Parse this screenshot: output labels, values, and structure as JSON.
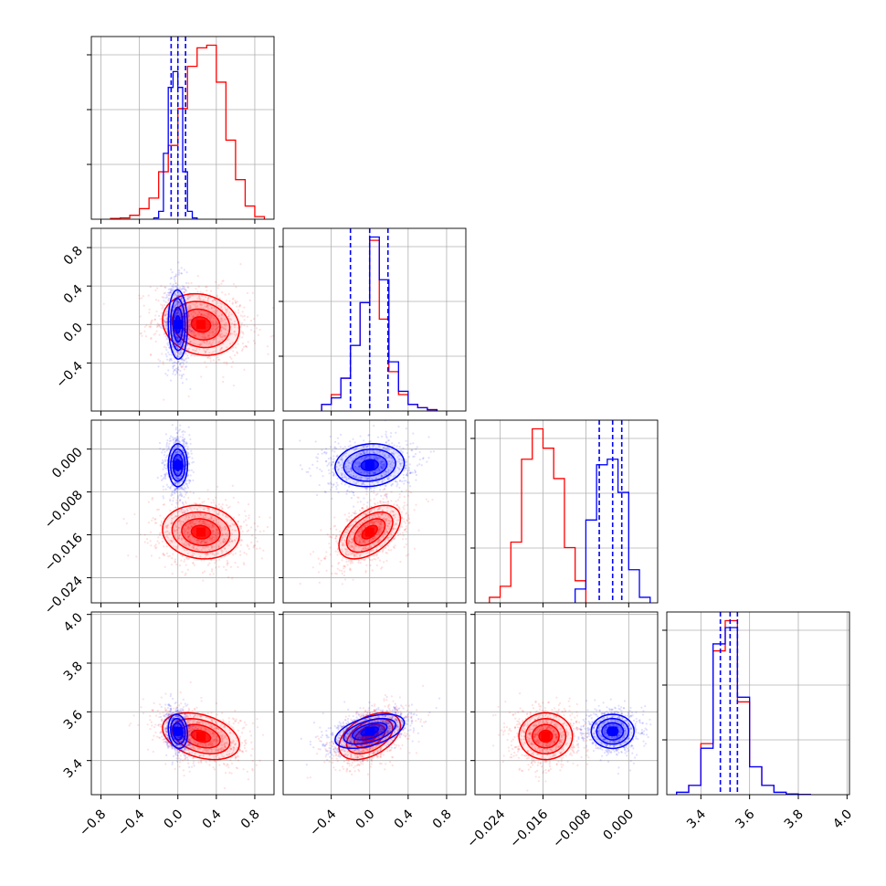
{
  "chart_data": {
    "type": "corner",
    "grid": true,
    "series": [
      {
        "color": "#ff0000",
        "means": {
          "p0": 0.24,
          "p1": 0.0,
          "p2": -0.0155,
          "p3": 3.5
        },
        "sds": {
          "p0": 0.2,
          "p1": 0.16,
          "p2": 0.0025,
          "p3": 0.048
        },
        "corr": {
          "p1_p0": -0.15,
          "p2_p0": -0.1,
          "p2_p1": 0.5,
          "p3_p0": -0.35,
          "p3_p1": 0.45,
          "p3_p2": 0.0
        },
        "hist": {
          "p0": {
            "edges": [
              -0.7,
              -0.6,
              -0.5,
              -0.4,
              -0.3,
              -0.2,
              -0.1,
              0.0,
              0.1,
              0.2,
              0.3,
              0.4,
              0.5,
              0.6,
              0.7,
              0.8,
              0.9
            ],
            "counts": [
              0.3,
              0.5,
              1.5,
              4,
              8,
              18,
              28,
              42,
              58,
              65,
              66,
              52,
              30,
              15,
              5,
              1
            ]
          },
          "p1": {
            "edges": [
              -0.5,
              -0.4,
              -0.3,
              -0.2,
              -0.1,
              0.0,
              0.1,
              0.2,
              0.3,
              0.4,
              0.5,
              0.6,
              0.7
            ],
            "counts": [
              2,
              5,
              10,
              20,
              33,
              52,
              28,
              12,
              5,
              2,
              1,
              0.4
            ]
          },
          "p2": {
            "edges": [
              -0.026,
              -0.024,
              -0.022,
              -0.02,
              -0.018,
              -0.016,
              -0.014,
              -0.012,
              -0.01,
              -0.008
            ],
            "counts": [
              2,
              6,
              22,
              52,
              63,
              56,
              45,
              20,
              8
            ]
          },
          "p3": {
            "edges": [
              3.3,
              3.35,
              3.4,
              3.45,
              3.5,
              3.55,
              3.6,
              3.65,
              3.7,
              3.75,
              3.8,
              3.85
            ],
            "counts": [
              1,
              4,
              22,
              62,
              75,
              40,
              12,
              4,
              1,
              0.3,
              0.1
            ]
          }
        }
      },
      {
        "color": "#0000ff",
        "means": {
          "p0": 0.0,
          "p1": 0.0,
          "p2": -0.003,
          "p3": 3.52
        },
        "sds": {
          "p0": 0.05,
          "p1": 0.18,
          "p2": 0.002,
          "p3": 0.035
        },
        "quantiles": {
          "p0": [
            -0.07,
            0.0,
            0.08
          ],
          "p1": [
            -0.2,
            0.0,
            0.19
          ],
          "p2": [
            -0.0055,
            -0.003,
            -0.0013
          ],
          "p3": [
            3.48,
            3.52,
            3.55
          ]
        },
        "corr": {
          "p1_p0": -0.05,
          "p2_p0": 0.0,
          "p2_p1": 0.1,
          "p3_p0": -0.15,
          "p3_p1": 0.5,
          "p3_p2": 0.0
        },
        "hist": {
          "p0": {
            "edges": [
              -0.25,
              -0.2,
              -0.15,
              -0.1,
              -0.05,
              0.0,
              0.05,
              0.1,
              0.15,
              0.2
            ],
            "counts": [
              0.5,
              3,
              25,
              50,
              56,
              50,
              18,
              3,
              0.5
            ]
          },
          "p1": {
            "edges": [
              -0.5,
              -0.4,
              -0.3,
              -0.2,
              -0.1,
              0.0,
              0.1,
              0.2,
              0.3,
              0.4,
              0.5,
              0.6,
              0.7
            ],
            "counts": [
              2,
              4,
              10,
              20,
              33,
              53,
              40,
              15,
              6,
              2,
              1,
              0.4
            ]
          },
          "p2": {
            "edges": [
              -0.01,
              -0.008,
              -0.006,
              -0.004,
              -0.002,
              0.0,
              0.002,
              0.004
            ],
            "counts": [
              5,
              30,
              50,
              52,
              40,
              12,
              2
            ]
          },
          "p3": {
            "edges": [
              3.3,
              3.35,
              3.4,
              3.45,
              3.5,
              3.55,
              3.6,
              3.65,
              3.7,
              3.75,
              3.8,
              3.85
            ],
            "counts": [
              1,
              4,
              20,
              65,
              72,
              42,
              12,
              4,
              1,
              0.3,
              0.1
            ]
          }
        }
      }
    ],
    "params": [
      {
        "key": "p0",
        "range": [
          -0.9,
          1.0
        ],
        "ticks": [
          -0.8,
          -0.4,
          0.0,
          0.4,
          0.8
        ],
        "tick_labels": [
          "−0.8",
          "−0.4",
          "0.0",
          "0.4",
          "0.8"
        ]
      },
      {
        "key": "p1",
        "range": [
          -0.9,
          1.0
        ],
        "ticks": [
          -0.4,
          0.0,
          0.4,
          0.8
        ],
        "tick_labels": [
          "−0.4",
          "0.0",
          "0.4",
          "0.8"
        ]
      },
      {
        "key": "p2",
        "range": [
          -0.0287,
          0.0054
        ],
        "ticks": [
          -0.024,
          -0.016,
          -0.008,
          0.0
        ],
        "tick_labels": [
          "−0.024",
          "−0.016",
          "−0.008",
          "0.000"
        ]
      },
      {
        "key": "p3",
        "range": [
          3.26,
          4.01
        ],
        "ticks": [
          3.4,
          3.6,
          3.8,
          4.0
        ],
        "tick_labels": [
          "3.4",
          "3.6",
          "3.8",
          "4.0"
        ]
      }
    ]
  }
}
